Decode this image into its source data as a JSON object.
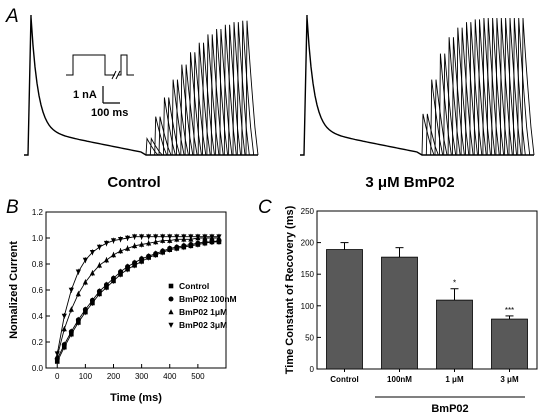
{
  "chart_data": [
    {
      "panel": "A",
      "type": "line",
      "traces": [
        {
          "caption": "Control",
          "recovery_intervals_ms": [
            50,
            100,
            150,
            200,
            250,
            300,
            350,
            400,
            450,
            500,
            550,
            600
          ],
          "recovered_fraction": [
            0.12,
            0.28,
            0.42,
            0.55,
            0.66,
            0.75,
            0.82,
            0.88,
            0.92,
            0.95,
            0.97,
            0.98
          ]
        },
        {
          "caption": "3 μM BmP02",
          "recovery_intervals_ms": [
            50,
            100,
            150,
            200,
            250,
            300,
            350,
            400,
            450,
            500,
            550,
            600
          ],
          "recovered_fraction": [
            0.3,
            0.55,
            0.74,
            0.86,
            0.93,
            0.97,
            0.99,
            1.0,
            1.0,
            1.0,
            1.0,
            1.0
          ]
        }
      ],
      "scale_bar": {
        "current_label": "1 nA",
        "time_label": "100 ms"
      }
    },
    {
      "panel": "B",
      "type": "scatter",
      "xlabel": "Time (ms)",
      "ylabel": "Nomalized Current",
      "xlim": [
        -40,
        600
      ],
      "ylim": [
        0,
        1.2
      ],
      "xticks": [
        0,
        100,
        200,
        300,
        400,
        500
      ],
      "yticks": [
        0.0,
        0.2,
        0.4,
        0.6,
        0.8,
        1.0,
        1.2
      ],
      "x": [
        0,
        25,
        50,
        75,
        100,
        125,
        150,
        175,
        200,
        225,
        250,
        275,
        300,
        325,
        350,
        375,
        400,
        425,
        450,
        475,
        500,
        525,
        550,
        575
      ],
      "series": [
        {
          "name": "Control",
          "marker": "square",
          "values": [
            0.05,
            0.16,
            0.26,
            0.35,
            0.43,
            0.5,
            0.57,
            0.62,
            0.67,
            0.72,
            0.76,
            0.79,
            0.82,
            0.85,
            0.87,
            0.89,
            0.91,
            0.92,
            0.93,
            0.94,
            0.95,
            0.96,
            0.97,
            0.97
          ]
        },
        {
          "name": "BmP02 100nM",
          "marker": "circle",
          "values": [
            0.07,
            0.18,
            0.28,
            0.37,
            0.45,
            0.52,
            0.59,
            0.64,
            0.69,
            0.74,
            0.78,
            0.81,
            0.84,
            0.86,
            0.88,
            0.9,
            0.92,
            0.93,
            0.94,
            0.95,
            0.96,
            0.97,
            0.97,
            0.98
          ]
        },
        {
          "name": "BmP02 1μM",
          "marker": "triangle-up",
          "values": [
            0.09,
            0.3,
            0.45,
            0.57,
            0.66,
            0.73,
            0.79,
            0.83,
            0.87,
            0.9,
            0.92,
            0.94,
            0.95,
            0.96,
            0.97,
            0.98,
            0.98,
            0.99,
            0.99,
            0.99,
            1.0,
            1.0,
            1.0,
            1.0
          ]
        },
        {
          "name": "BmP02 3μM",
          "marker": "triangle-down",
          "values": [
            0.11,
            0.4,
            0.6,
            0.74,
            0.83,
            0.89,
            0.93,
            0.96,
            0.98,
            0.99,
            1.0,
            1.01,
            1.01,
            1.01,
            1.01,
            1.01,
            1.01,
            1.01,
            1.01,
            1.01,
            1.01,
            1.01,
            1.01,
            1.01
          ]
        }
      ],
      "legend_position": "right"
    },
    {
      "panel": "C",
      "type": "bar",
      "ylabel": "Time Constant of Recovery (ms)",
      "categories": [
        "Control",
        "100nM",
        "1 μM",
        "3 μM"
      ],
      "values": [
        189,
        177,
        109,
        79
      ],
      "errors": [
        11,
        15,
        18,
        5
      ],
      "significance": [
        "",
        "",
        "*",
        "***"
      ],
      "group_label": "BmP02",
      "ylim": [
        0,
        250
      ],
      "yticks": [
        0,
        50,
        100,
        150,
        200,
        250
      ],
      "bar_color": "#595959"
    }
  ],
  "labels": {
    "panel_a": "A",
    "panel_b": "B",
    "panel_c": "C",
    "caption_control": "Control",
    "caption_bmp02": "3 μM BmP02",
    "scale_current": "1 nA",
    "scale_time": "100 ms",
    "b_xlabel": "Time (ms)",
    "b_ylabel": "Nomalized Current",
    "c_ylabel": "Time Constant of Recovery (ms)",
    "c_group": "BmP02"
  }
}
